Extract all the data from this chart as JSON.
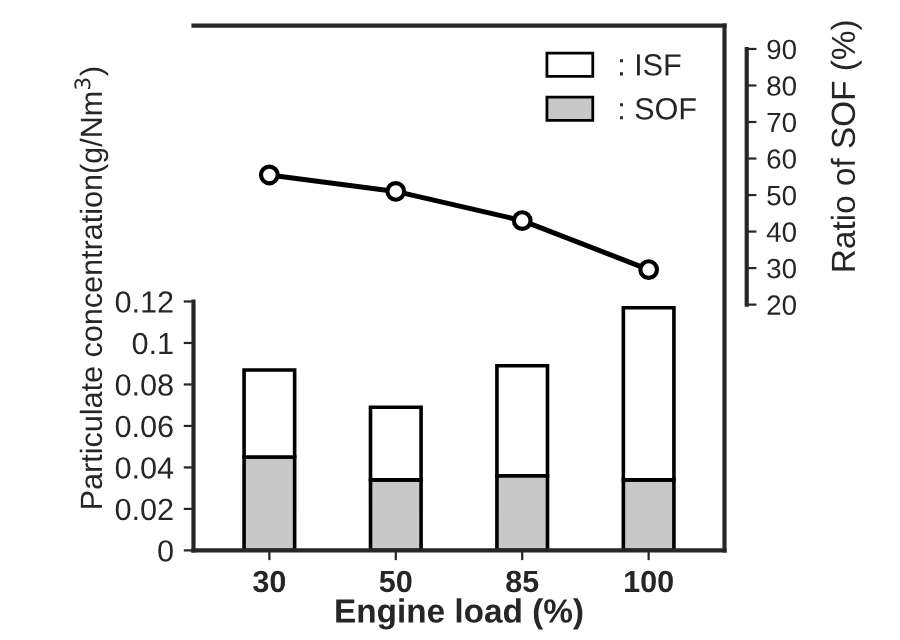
{
  "chart_data": {
    "type": "bar",
    "stacked": true,
    "categories": [
      "30",
      "50",
      "85",
      "100"
    ],
    "xlabel": "Engine load (%)",
    "ylabel": "Particulate concentration(g/Nm$^{3}$)",
    "y2label": "Ratio of SOF (%)",
    "series": [
      {
        "name": ": SOF",
        "color": "#c8c8c8",
        "values": [
          0.045,
          0.034,
          0.036,
          0.034
        ]
      },
      {
        "name": ": ISF",
        "color": "#ffffff",
        "values": [
          0.042,
          0.035,
          0.053,
          0.083
        ]
      },
      {
        "type": "line",
        "axis": "y2",
        "color": "#000000",
        "marker": "circle",
        "values": [
          55.5,
          51,
          43,
          29.6
        ]
      }
    ],
    "ylim": [
      0,
      0.253
    ],
    "yticks": [
      0,
      0.02,
      0.04,
      0.06,
      0.08,
      0.1,
      0.12
    ],
    "y2lim": [
      -47.3,
      96.4
    ],
    "y2ticks": [
      20,
      30,
      40,
      50,
      60,
      70,
      80,
      90
    ],
    "legend": "top right"
  }
}
